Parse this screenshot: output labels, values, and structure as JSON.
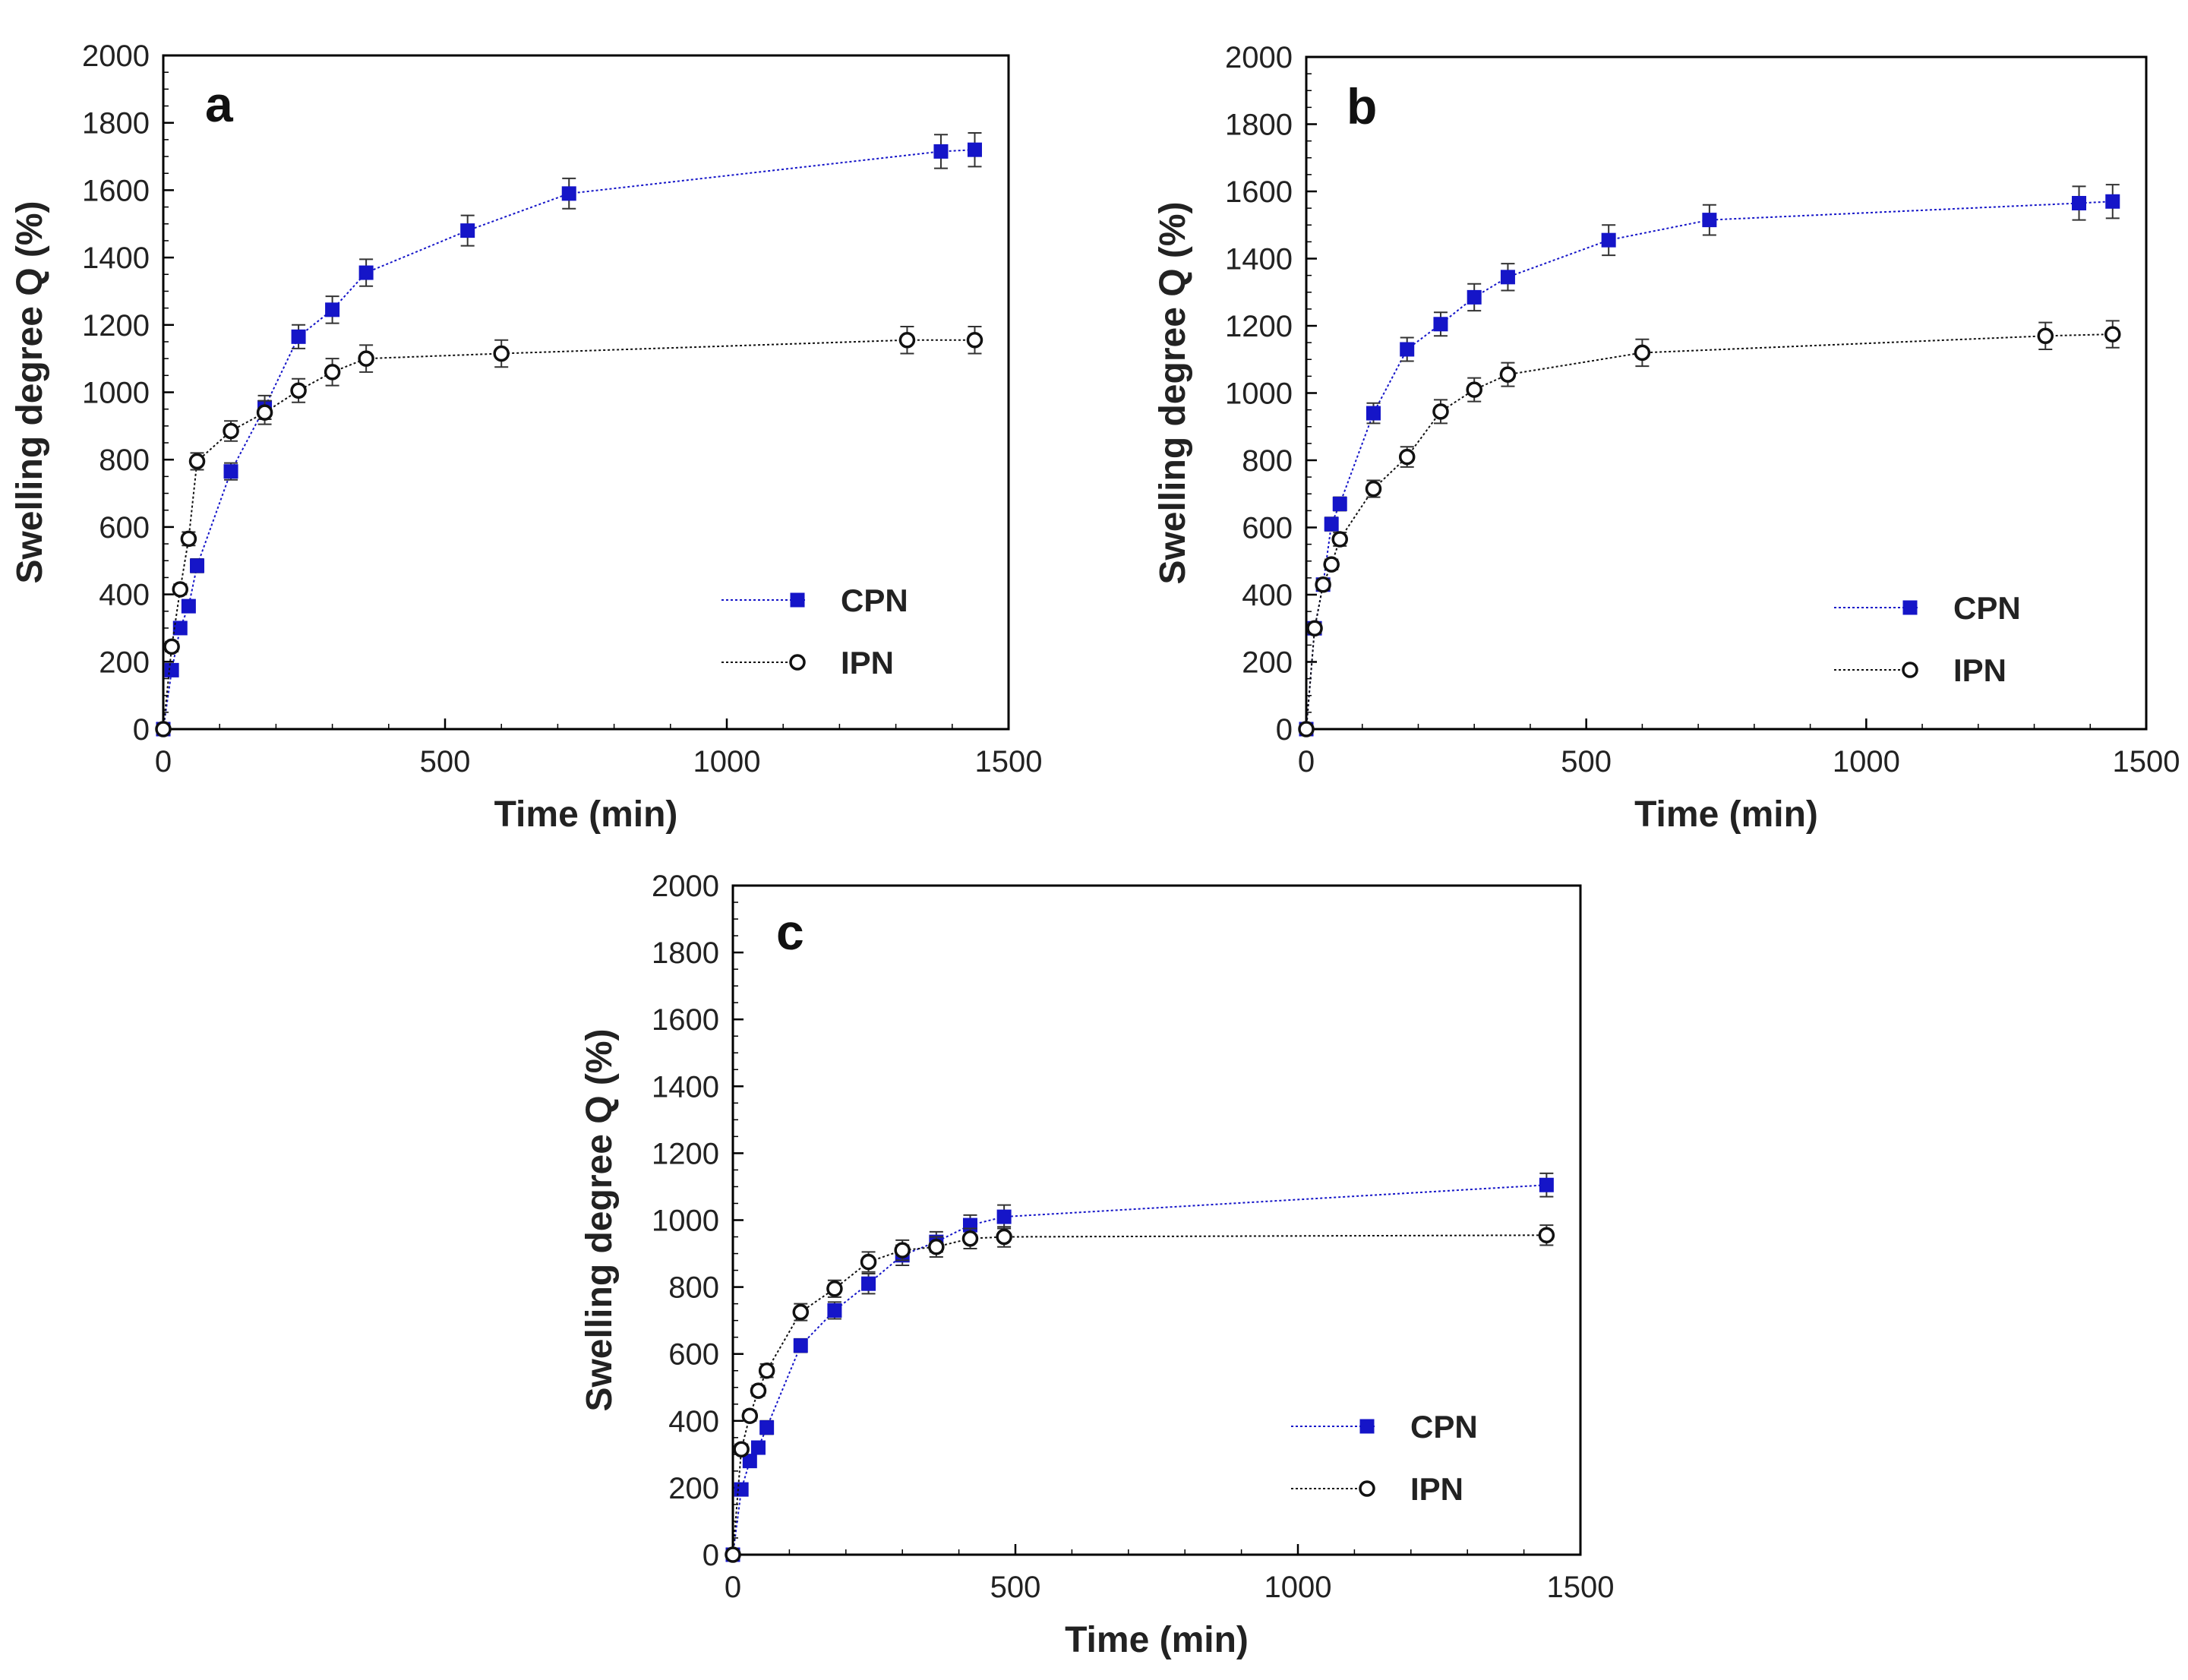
{
  "colors": {
    "cpn": "#1515c8",
    "ipn": "#111111",
    "frame": "#000000"
  },
  "chart_data": [
    {
      "type": "scatter",
      "panel_label": "a",
      "xlabel": "Time (min)",
      "ylabel": "Swelling degree  Q (%)",
      "xlim": [
        0,
        1500
      ],
      "ylim": [
        0,
        2000
      ],
      "xticks": [
        "0",
        "500",
        "1000",
        "1500"
      ],
      "yticks": [
        "0",
        "200",
        "400",
        "600",
        "800",
        "1000",
        "1200",
        "1400",
        "1600",
        "1800",
        "2000"
      ],
      "legend_position": "bottom-right",
      "series": [
        {
          "name": "CPN",
          "marker": "filled-square",
          "x": [
            0,
            15,
            30,
            45,
            60,
            120,
            180,
            240,
            300,
            360,
            540,
            720,
            1380,
            1440
          ],
          "y": [
            0,
            175,
            300,
            365,
            485,
            765,
            955,
            1165,
            1245,
            1355,
            1480,
            1590,
            1715,
            1720
          ],
          "err": [
            0,
            15,
            15,
            15,
            20,
            25,
            35,
            35,
            40,
            40,
            45,
            45,
            50,
            50
          ]
        },
        {
          "name": "IPN",
          "marker": "open-circle",
          "x": [
            0,
            15,
            30,
            45,
            60,
            120,
            180,
            240,
            300,
            360,
            600,
            1320,
            1440
          ],
          "y": [
            0,
            245,
            415,
            565,
            795,
            885,
            940,
            1005,
            1060,
            1100,
            1115,
            1155,
            1155
          ],
          "err": [
            0,
            15,
            15,
            20,
            25,
            30,
            35,
            35,
            40,
            40,
            40,
            40,
            40
          ]
        }
      ]
    },
    {
      "type": "scatter",
      "panel_label": "b",
      "xlabel": "Time (min)",
      "ylabel": "Swelling degree  Q (%)",
      "xlim": [
        0,
        1500
      ],
      "ylim": [
        0,
        2000
      ],
      "xticks": [
        "0",
        "500",
        "1000",
        "1500"
      ],
      "yticks": [
        "0",
        "200",
        "400",
        "600",
        "800",
        "1000",
        "1200",
        "1400",
        "1600",
        "1800",
        "2000"
      ],
      "legend_position": "bottom-right",
      "series": [
        {
          "name": "CPN",
          "marker": "filled-square",
          "x": [
            0,
            15,
            30,
            45,
            60,
            120,
            180,
            240,
            300,
            360,
            540,
            720,
            1380,
            1440
          ],
          "y": [
            0,
            300,
            430,
            610,
            670,
            940,
            1130,
            1205,
            1285,
            1345,
            1455,
            1515,
            1565,
            1570
          ],
          "err": [
            0,
            15,
            15,
            20,
            20,
            30,
            35,
            35,
            40,
            40,
            45,
            45,
            50,
            50
          ]
        },
        {
          "name": "IPN",
          "marker": "open-circle",
          "x": [
            0,
            15,
            30,
            45,
            60,
            120,
            180,
            240,
            300,
            360,
            600,
            1320,
            1440
          ],
          "y": [
            0,
            300,
            430,
            490,
            565,
            715,
            810,
            945,
            1010,
            1055,
            1120,
            1170,
            1175
          ],
          "err": [
            0,
            15,
            15,
            15,
            20,
            25,
            30,
            35,
            35,
            35,
            40,
            40,
            40
          ]
        }
      ]
    },
    {
      "type": "scatter",
      "panel_label": "c",
      "xlabel": "Time (min)",
      "ylabel": "Swelling degree  Q (%)",
      "xlim": [
        0,
        1500
      ],
      "ylim": [
        0,
        2000
      ],
      "xticks": [
        "0",
        "500",
        "1000",
        "1500"
      ],
      "yticks": [
        "0",
        "200",
        "400",
        "600",
        "800",
        "1000",
        "1200",
        "1400",
        "1600",
        "1800",
        "2000"
      ],
      "legend_position": "bottom-right",
      "series": [
        {
          "name": "CPN",
          "marker": "filled-square",
          "x": [
            0,
            15,
            30,
            45,
            60,
            120,
            180,
            240,
            300,
            360,
            420,
            480,
            1440
          ],
          "y": [
            0,
            195,
            280,
            320,
            380,
            625,
            730,
            810,
            895,
            935,
            985,
            1010,
            1105
          ],
          "err": [
            0,
            15,
            15,
            15,
            20,
            20,
            25,
            30,
            30,
            30,
            30,
            35,
            35
          ]
        },
        {
          "name": "IPN",
          "marker": "open-circle",
          "x": [
            0,
            15,
            30,
            45,
            60,
            120,
            180,
            240,
            300,
            360,
            420,
            480,
            1440
          ],
          "y": [
            0,
            315,
            415,
            490,
            550,
            725,
            795,
            875,
            910,
            920,
            945,
            950,
            955
          ],
          "err": [
            0,
            15,
            15,
            15,
            20,
            25,
            25,
            30,
            30,
            30,
            30,
            30,
            30
          ]
        }
      ]
    }
  ]
}
